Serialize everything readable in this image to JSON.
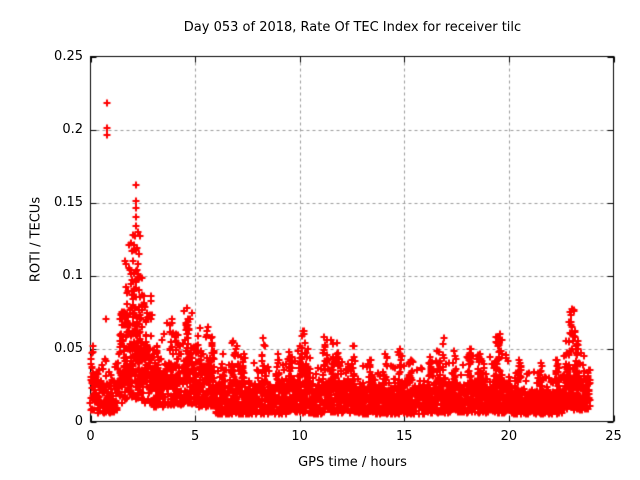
{
  "chart": {
    "title": "Day 053 of 2018, Rate Of TEC Index for receiver tilc",
    "xlabel": "GPS time / hours",
    "ylabel": "ROTI / TECUs"
  },
  "axes": {
    "xlim": [
      0,
      25
    ],
    "ylim": [
      0,
      0.25
    ],
    "xticks": [
      {
        "value": 0,
        "label": "0"
      },
      {
        "value": 5,
        "label": "5"
      },
      {
        "value": 10,
        "label": "10"
      },
      {
        "value": 15,
        "label": "15"
      },
      {
        "value": 20,
        "label": "20"
      },
      {
        "value": 25,
        "label": "25"
      }
    ],
    "yticks": [
      {
        "value": 0,
        "label": "0"
      },
      {
        "value": 0.05,
        "label": "0.05"
      },
      {
        "value": 0.1,
        "label": "0.1"
      },
      {
        "value": 0.15,
        "label": "0.15"
      },
      {
        "value": 0.2,
        "label": "0.2"
      },
      {
        "value": 0.25,
        "label": "0.25"
      }
    ],
    "grid_style": "dashed"
  },
  "colors": {
    "marker": "#ff0000",
    "grid": "#9b9b9b",
    "border": "#000000",
    "text": "#000000",
    "background": "#ffffff"
  },
  "chart_data": {
    "type": "scatter",
    "marker": "plus",
    "marker_size_px": 7,
    "title": "Day 053 of 2018, Rate Of TEC Index for receiver tilc",
    "xlabel": "GPS time / hours",
    "ylabel": "ROTI / TECUs",
    "x_unit": "hours",
    "y_unit": "TECU",
    "xlim": [
      0,
      25
    ],
    "ylim": [
      0,
      0.25
    ],
    "x_data_range": [
      0,
      23.9
    ],
    "legend": null,
    "seed": 2018053,
    "sample_step_hours": 0.008,
    "band_format": "[x0_hours, x1_hours, y_min, y_core_top, y_max_ragged]",
    "base_band": [
      [
        0.0,
        0.35,
        0.008,
        0.04,
        0.05
      ],
      [
        0.35,
        1.3,
        0.006,
        0.028,
        0.04
      ],
      [
        1.3,
        1.62,
        0.012,
        0.055,
        0.078
      ],
      [
        1.62,
        2.4,
        0.015,
        0.08,
        0.115
      ],
      [
        2.4,
        3.0,
        0.012,
        0.06,
        0.088
      ],
      [
        3.0,
        3.5,
        0.01,
        0.036,
        0.056
      ],
      [
        3.5,
        4.35,
        0.011,
        0.04,
        0.068
      ],
      [
        4.35,
        4.9,
        0.012,
        0.048,
        0.078
      ],
      [
        4.9,
        6.0,
        0.01,
        0.038,
        0.066
      ],
      [
        6.0,
        9.4,
        0.005,
        0.026,
        0.04
      ],
      [
        9.4,
        10.4,
        0.006,
        0.029,
        0.048
      ],
      [
        10.4,
        11.05,
        0.005,
        0.024,
        0.037
      ],
      [
        11.05,
        11.95,
        0.006,
        0.028,
        0.046
      ],
      [
        11.95,
        12.9,
        0.006,
        0.027,
        0.043
      ],
      [
        12.9,
        16.0,
        0.005,
        0.025,
        0.039
      ],
      [
        16.0,
        18.2,
        0.006,
        0.027,
        0.043
      ],
      [
        18.2,
        20.1,
        0.006,
        0.028,
        0.046
      ],
      [
        20.1,
        22.55,
        0.005,
        0.022,
        0.035
      ],
      [
        22.55,
        23.9,
        0.008,
        0.032,
        0.05
      ]
    ],
    "burst_format": "[x_hours, y_top, n_points_optional]",
    "bursts": [
      [
        0.12,
        0.052,
        4
      ],
      [
        0.73,
        0.07,
        3
      ],
      [
        1.5,
        0.075
      ],
      [
        1.7,
        0.092
      ],
      [
        1.83,
        0.105
      ],
      [
        1.93,
        0.122
      ],
      [
        2.03,
        0.128
      ],
      [
        2.18,
        0.14
      ],
      [
        2.25,
        0.13
      ],
      [
        2.33,
        0.115
      ],
      [
        2.45,
        0.098
      ],
      [
        2.55,
        0.086
      ],
      [
        2.7,
        0.074
      ],
      [
        2.85,
        0.086
      ],
      [
        3.15,
        0.052
      ],
      [
        3.9,
        0.07
      ],
      [
        4.1,
        0.06
      ],
      [
        4.61,
        0.078
      ],
      [
        4.72,
        0.07
      ],
      [
        5.0,
        0.052
      ],
      [
        5.23,
        0.064
      ],
      [
        5.62,
        0.065
      ],
      [
        5.8,
        0.058
      ],
      [
        6.35,
        0.046
      ],
      [
        6.8,
        0.055
      ],
      [
        7.0,
        0.052
      ],
      [
        7.3,
        0.046
      ],
      [
        8.25,
        0.057
      ],
      [
        8.96,
        0.046
      ],
      [
        9.6,
        0.044
      ],
      [
        10.0,
        0.052
      ],
      [
        10.2,
        0.062
      ],
      [
        10.4,
        0.05
      ],
      [
        11.2,
        0.058
      ],
      [
        11.5,
        0.056
      ],
      [
        11.8,
        0.054
      ],
      [
        12.55,
        0.052
      ],
      [
        13.36,
        0.042
      ],
      [
        14.08,
        0.046
      ],
      [
        14.8,
        0.05
      ],
      [
        15.3,
        0.042
      ],
      [
        16.2,
        0.044
      ],
      [
        16.6,
        0.048
      ],
      [
        16.9,
        0.057
      ],
      [
        17.4,
        0.048
      ],
      [
        18.1,
        0.05
      ],
      [
        18.6,
        0.046
      ],
      [
        19.4,
        0.058,
        16
      ],
      [
        19.6,
        0.06,
        16
      ],
      [
        20.5,
        0.042
      ],
      [
        21.5,
        0.04
      ],
      [
        22.3,
        0.042
      ],
      [
        22.7,
        0.055
      ],
      [
        22.9,
        0.068
      ],
      [
        23.0,
        0.077,
        14
      ],
      [
        23.15,
        0.062
      ],
      [
        23.3,
        0.055
      ]
    ],
    "outliers": [
      [
        0.79,
        0.218
      ],
      [
        0.78,
        0.201
      ],
      [
        0.79,
        0.196
      ],
      [
        2.18,
        0.162
      ],
      [
        2.17,
        0.151
      ],
      [
        2.19,
        0.146
      ],
      [
        2.18,
        0.134
      ],
      [
        2.12,
        0.127
      ],
      [
        2.07,
        0.121
      ],
      [
        2.22,
        0.119
      ],
      [
        1.99,
        0.117
      ],
      [
        0.73,
        0.07
      ]
    ]
  }
}
